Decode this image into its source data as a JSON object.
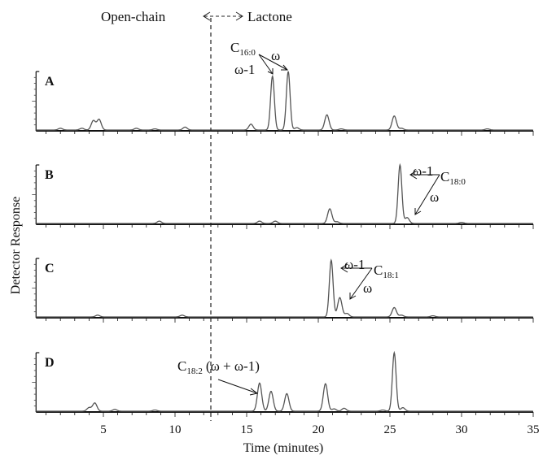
{
  "chart_data": {
    "type": "line",
    "xlabel": "Time (minutes)",
    "ylabel": "Detector Response",
    "xlim": [
      0.3,
      35
    ],
    "ylim": [
      0,
      1
    ],
    "x_ticks": [
      5,
      10,
      15,
      20,
      25,
      30,
      35
    ],
    "divider": {
      "x": 12.5,
      "left_label": "Open-chain",
      "right_label": "Lactone"
    },
    "grid": false,
    "panels": [
      {
        "label": "A",
        "peaks": [
          [
            2.0,
            0.03
          ],
          [
            3.5,
            0.03
          ],
          [
            4.3,
            0.16
          ],
          [
            4.7,
            0.18
          ],
          [
            7.3,
            0.03
          ],
          [
            8.6,
            0.02
          ],
          [
            10.7,
            0.05
          ],
          [
            15.3,
            0.1
          ],
          [
            16.8,
            0.92
          ],
          [
            17.9,
            1.0
          ],
          [
            18.5,
            0.04
          ],
          [
            20.6,
            0.26
          ],
          [
            21.6,
            0.02
          ],
          [
            25.3,
            0.24
          ],
          [
            25.8,
            0.03
          ],
          [
            31.8,
            0.02
          ]
        ],
        "annotations": {
          "compound": "C",
          "subscript": "16:0",
          "omega": "ω",
          "omega_minus_1": "ω-1"
        }
      },
      {
        "label": "B",
        "peaks": [
          [
            8.9,
            0.04
          ],
          [
            15.9,
            0.04
          ],
          [
            17.0,
            0.04
          ],
          [
            20.8,
            0.25
          ],
          [
            21.3,
            0.03
          ],
          [
            25.7,
            1.0
          ],
          [
            26.2,
            0.1
          ],
          [
            30.0,
            0.02
          ]
        ],
        "annotations": {
          "compound": "C",
          "subscript": "18:0",
          "omega": "ω",
          "omega_minus_1": "ω-1"
        }
      },
      {
        "label": "C",
        "peaks": [
          [
            4.6,
            0.03
          ],
          [
            10.5,
            0.03
          ],
          [
            20.9,
            0.97
          ],
          [
            21.5,
            0.33
          ],
          [
            22.0,
            0.06
          ],
          [
            25.3,
            0.16
          ],
          [
            25.8,
            0.03
          ],
          [
            28.0,
            0.02
          ]
        ],
        "annotations": {
          "compound": "C",
          "subscript": "18:1",
          "omega": "ω",
          "omega_minus_1": "ω-1"
        }
      },
      {
        "label": "D",
        "peaks": [
          [
            4.0,
            0.06
          ],
          [
            4.4,
            0.14
          ],
          [
            5.8,
            0.03
          ],
          [
            8.6,
            0.02
          ],
          [
            15.9,
            0.48
          ],
          [
            16.7,
            0.34
          ],
          [
            17.8,
            0.3
          ],
          [
            20.5,
            0.47
          ],
          [
            21.1,
            0.04
          ],
          [
            21.8,
            0.05
          ],
          [
            24.5,
            0.02
          ],
          [
            25.3,
            1.0
          ],
          [
            25.9,
            0.06
          ]
        ],
        "annotations": {
          "compound": "C",
          "subscript": "18:2",
          "note": "(ω + ω-1)"
        }
      }
    ]
  }
}
